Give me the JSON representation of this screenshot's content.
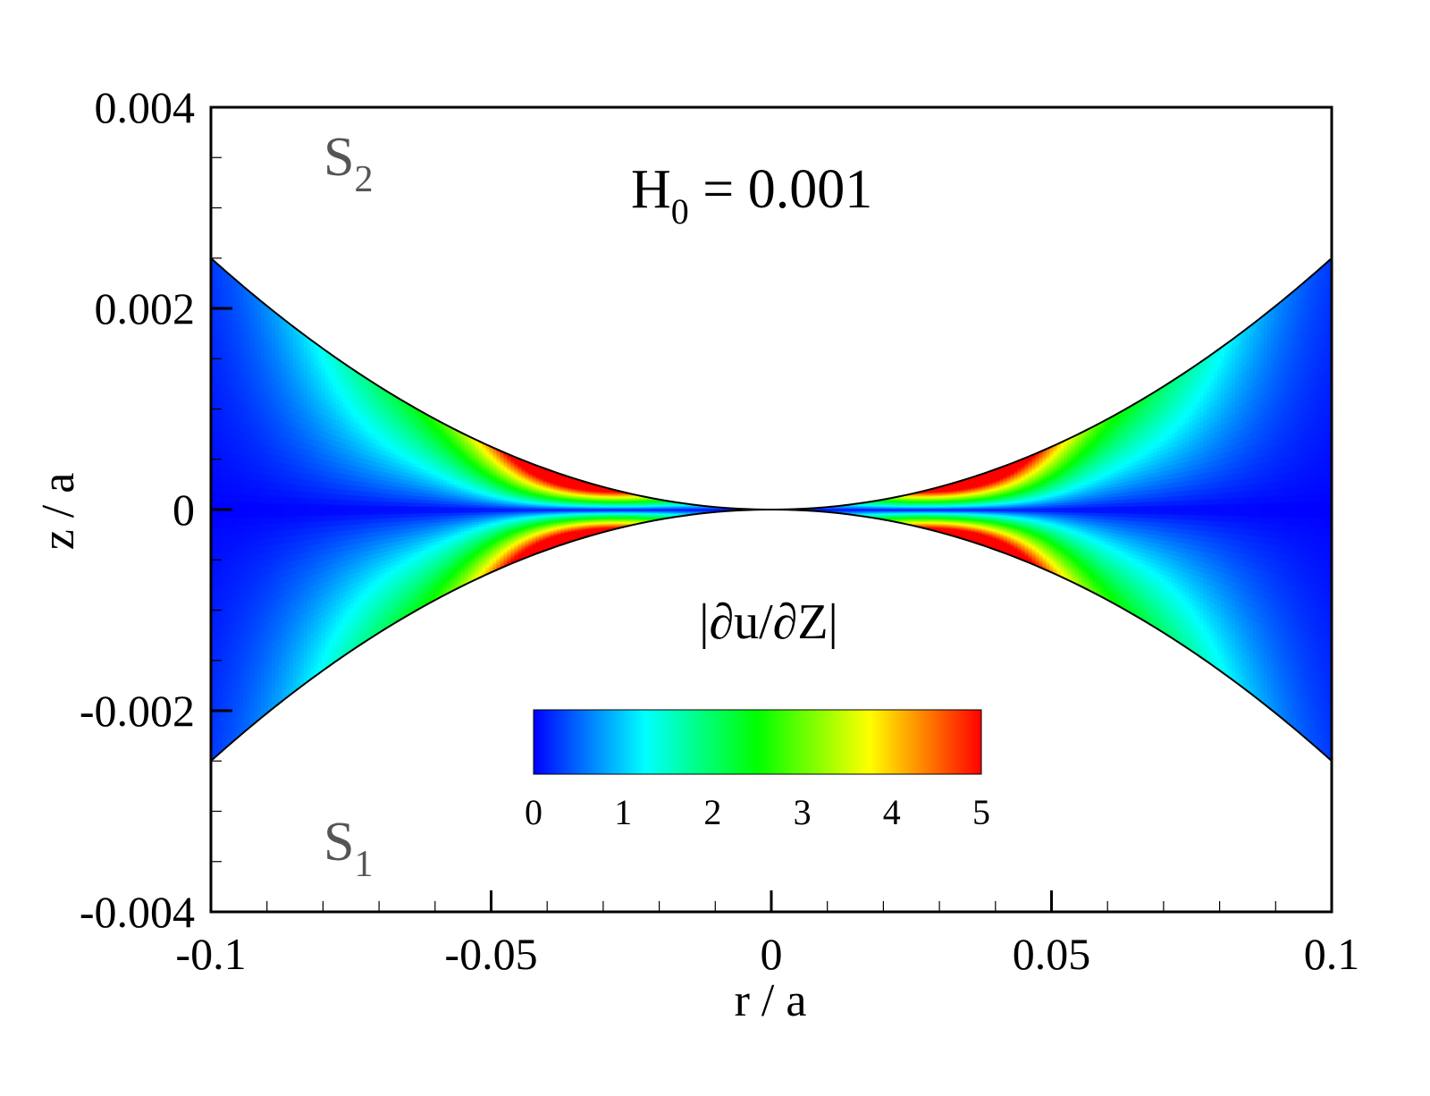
{
  "chart_data": {
    "type": "heatmap",
    "xlabel": "r / a",
    "ylabel": "z / a",
    "xlim": [
      -0.1,
      0.1
    ],
    "ylim": [
      -0.004,
      0.004
    ],
    "x_ticks": [
      {
        "value": -0.1,
        "label": "-0.1"
      },
      {
        "value": -0.05,
        "label": "-0.05"
      },
      {
        "value": 0,
        "label": "0"
      },
      {
        "value": 0.05,
        "label": "0.05"
      },
      {
        "value": 0.1,
        "label": "0.1"
      }
    ],
    "y_ticks": [
      {
        "value": 0.004,
        "label": "0.004"
      },
      {
        "value": 0.002,
        "label": "0.002"
      },
      {
        "value": 0,
        "label": "0"
      },
      {
        "value": -0.002,
        "label": "-0.002"
      },
      {
        "value": -0.004,
        "label": "-0.004"
      }
    ],
    "x_minor_step": 0.01,
    "y_minor_step": 0.0005,
    "annotations": {
      "h0_main": "H",
      "h0_sub": "0",
      "h0_rest": " = 0.001",
      "s2_main": "S",
      "s2_sub": "2",
      "s1_main": "S",
      "s1_sub": "1",
      "field_label": "|∂u/∂Z|"
    },
    "surfaces": {
      "top": "z = r^2 / 4",
      "bottom": "z = -r^2 / 4",
      "edge_height_at_r_0_1": 0.0025
    },
    "colorbar": {
      "min": 0,
      "max": 5,
      "ticks": [
        "0",
        "1",
        "2",
        "3",
        "4",
        "5"
      ],
      "colors": [
        "#0000ff",
        "#00ffff",
        "#00ff00",
        "#ffff00",
        "#ff0000"
      ]
    },
    "field_description_peak_r": 0.035,
    "grid": false
  }
}
